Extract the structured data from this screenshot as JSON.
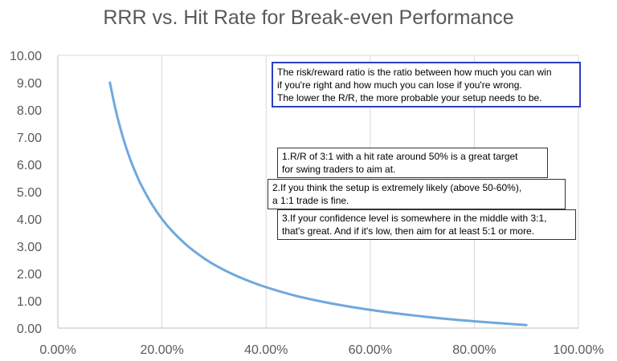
{
  "chart_data": {
    "type": "line",
    "title": "RRR vs. Hit Rate for Break-even Performance",
    "xlabel": "",
    "ylabel": "",
    "xlim": [
      0,
      1
    ],
    "ylim": [
      0,
      10
    ],
    "x_ticks": [
      "0.00%",
      "20.00%",
      "40.00%",
      "60.00%",
      "80.00%",
      "100.00%"
    ],
    "y_ticks": [
      "0.00",
      "1.00",
      "2.00",
      "3.00",
      "4.00",
      "5.00",
      "6.00",
      "7.00",
      "8.00",
      "9.00",
      "10.00"
    ],
    "grid": "vertical",
    "line_color": "#6fa8dc",
    "series": [
      {
        "x": [
          0.1,
          0.11,
          0.12,
          0.13,
          0.14,
          0.15,
          0.16,
          0.18,
          0.2,
          0.22,
          0.25,
          0.28,
          0.3,
          0.33,
          0.36,
          0.4,
          0.45,
          0.5,
          0.55,
          0.6,
          0.65,
          0.7,
          0.75,
          0.8,
          0.85,
          0.9
        ],
        "y": [
          9.0,
          8.09,
          7.33,
          6.69,
          6.14,
          5.67,
          5.25,
          4.56,
          4.0,
          3.55,
          3.0,
          2.57,
          2.33,
          2.03,
          1.78,
          1.5,
          1.22,
          1.0,
          0.82,
          0.67,
          0.54,
          0.43,
          0.33,
          0.25,
          0.18,
          0.11
        ]
      }
    ]
  },
  "notes": {
    "main": "The risk/reward ratio is the ratio between how much you can win\nif you're right and how much you can lose if you're wrong.\nThe lower the R/R, the more probable your setup needs to be.",
    "tip1": "1.R/R of 3:1 with a hit rate around 50% is a great target\nfor swing traders to aim at.",
    "tip2": "2.If you think the setup is extremely likely (above 50-60%),\na 1:1 trade is fine.",
    "tip3": "3.If your confidence level is somewhere in the middle with 3:1,\nthat's great. And if it's low, then aim for at least 5:1 or more."
  },
  "colors": {
    "main_note_border": "#2e3fbf",
    "grid": "#d9d9d9",
    "tick_text": "#595959"
  }
}
